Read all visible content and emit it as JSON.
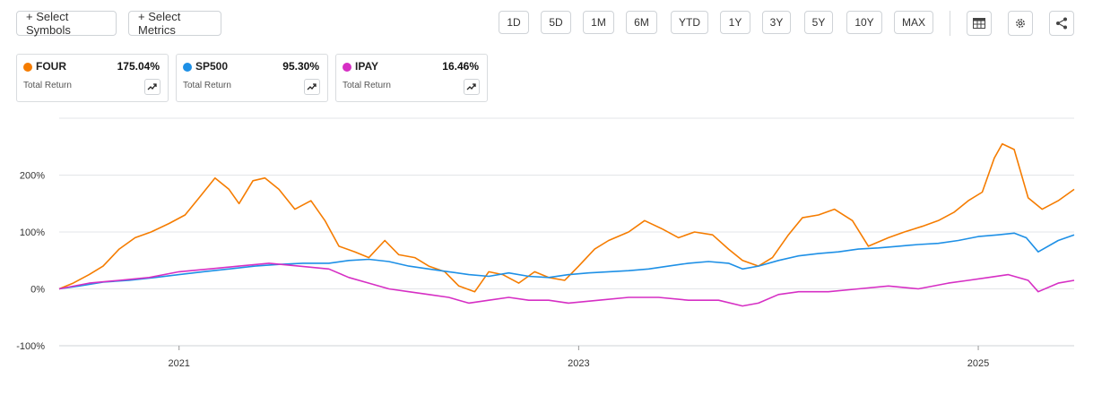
{
  "toolbar": {
    "select_symbols": "+ Select Symbols",
    "select_metrics": "+ Select Metrics",
    "ranges": [
      "1D",
      "5D",
      "1M",
      "6M",
      "YTD",
      "1Y",
      "3Y",
      "5Y",
      "10Y",
      "MAX"
    ]
  },
  "legend_cards": [
    {
      "symbol": "FOUR",
      "value": "175.04%",
      "metric": "Total Return",
      "color": "#f57c00"
    },
    {
      "symbol": "SP500",
      "value": "95.30%",
      "metric": "Total Return",
      "color": "#1e90e6"
    },
    {
      "symbol": "IPAY",
      "value": "16.46%",
      "metric": "Total Return",
      "color": "#d62fc4"
    }
  ],
  "chart_data": {
    "type": "line",
    "title": "",
    "xlabel": "",
    "ylabel": "",
    "y_ticks": [
      "200%",
      "100%",
      "0%",
      "-100%"
    ],
    "y_tick_values": [
      200,
      100,
      0,
      -100
    ],
    "ylim": [
      -100,
      300
    ],
    "x_ticks": [
      "2021",
      "2023",
      "2025"
    ],
    "x_tick_values": [
      2021.0,
      2023.0,
      2025.0
    ],
    "xlim": [
      2020.4,
      2025.48
    ],
    "grid": true,
    "series": [
      {
        "name": "FOUR",
        "color": "#f57c00",
        "x": [
          2020.4,
          2020.47,
          2020.55,
          2020.62,
          2020.7,
          2020.78,
          2020.86,
          2020.95,
          2021.03,
          2021.1,
          2021.18,
          2021.25,
          2021.3,
          2021.37,
          2021.43,
          2021.5,
          2021.58,
          2021.66,
          2021.73,
          2021.8,
          2021.88,
          2021.95,
          2022.03,
          2022.1,
          2022.18,
          2022.25,
          2022.33,
          2022.4,
          2022.48,
          2022.55,
          2022.62,
          2022.7,
          2022.78,
          2022.85,
          2022.93,
          2023.0,
          2023.08,
          2023.15,
          2023.25,
          2023.33,
          2023.42,
          2023.5,
          2023.58,
          2023.67,
          2023.75,
          2023.82,
          2023.9,
          2023.97,
          2024.05,
          2024.12,
          2024.2,
          2024.28,
          2024.37,
          2024.45,
          2024.55,
          2024.63,
          2024.72,
          2024.8,
          2024.88,
          2024.95,
          2025.02,
          2025.08,
          2025.12,
          2025.18,
          2025.25,
          2025.32,
          2025.4,
          2025.48
        ],
        "y": [
          0,
          10,
          25,
          40,
          70,
          90,
          100,
          115,
          130,
          160,
          195,
          175,
          150,
          190,
          195,
          175,
          140,
          155,
          120,
          75,
          65,
          55,
          85,
          60,
          55,
          40,
          30,
          5,
          -5,
          30,
          25,
          10,
          30,
          20,
          15,
          40,
          70,
          85,
          100,
          120,
          105,
          90,
          100,
          95,
          70,
          50,
          40,
          55,
          95,
          125,
          130,
          140,
          120,
          75,
          90,
          100,
          110,
          120,
          135,
          155,
          170,
          230,
          255,
          245,
          160,
          140,
          155,
          175
        ]
      },
      {
        "name": "SP500",
        "color": "#1e90e6",
        "x": [
          2020.4,
          2020.5,
          2020.62,
          2020.75,
          2020.88,
          2021.0,
          2021.12,
          2021.25,
          2021.38,
          2021.5,
          2021.62,
          2021.75,
          2021.85,
          2021.95,
          2022.05,
          2022.15,
          2022.25,
          2022.35,
          2022.45,
          2022.55,
          2022.65,
          2022.75,
          2022.85,
          2022.95,
          2023.05,
          2023.15,
          2023.25,
          2023.35,
          2023.45,
          2023.55,
          2023.65,
          2023.75,
          2023.82,
          2023.9,
          2024.0,
          2024.1,
          2024.2,
          2024.3,
          2024.4,
          2024.5,
          2024.6,
          2024.7,
          2024.8,
          2024.9,
          2025.0,
          2025.1,
          2025.18,
          2025.24,
          2025.3,
          2025.4,
          2025.48
        ],
        "y": [
          0,
          5,
          12,
          15,
          20,
          25,
          30,
          35,
          40,
          43,
          45,
          45,
          50,
          52,
          48,
          40,
          35,
          30,
          25,
          22,
          28,
          22,
          20,
          25,
          28,
          30,
          32,
          35,
          40,
          45,
          48,
          45,
          35,
          40,
          50,
          58,
          62,
          65,
          70,
          72,
          75,
          78,
          80,
          85,
          92,
          95,
          98,
          90,
          65,
          85,
          95
        ]
      },
      {
        "name": "IPAY",
        "color": "#d62fc4",
        "x": [
          2020.4,
          2020.55,
          2020.7,
          2020.85,
          2021.0,
          2021.15,
          2021.3,
          2021.45,
          2021.6,
          2021.75,
          2021.85,
          2021.95,
          2022.05,
          2022.15,
          2022.25,
          2022.35,
          2022.45,
          2022.55,
          2022.65,
          2022.75,
          2022.85,
          2022.95,
          2023.1,
          2023.25,
          2023.4,
          2023.55,
          2023.7,
          2023.82,
          2023.9,
          2024.0,
          2024.1,
          2024.25,
          2024.4,
          2024.55,
          2024.7,
          2024.85,
          2024.95,
          2025.05,
          2025.15,
          2025.25,
          2025.3,
          2025.4,
          2025.48
        ],
        "y": [
          0,
          10,
          15,
          20,
          30,
          35,
          40,
          45,
          40,
          35,
          20,
          10,
          0,
          -5,
          -10,
          -15,
          -25,
          -20,
          -15,
          -20,
          -20,
          -25,
          -20,
          -15,
          -15,
          -20,
          -20,
          -30,
          -25,
          -10,
          -5,
          -5,
          0,
          5,
          0,
          10,
          15,
          20,
          25,
          15,
          -5,
          10,
          15
        ]
      }
    ]
  }
}
